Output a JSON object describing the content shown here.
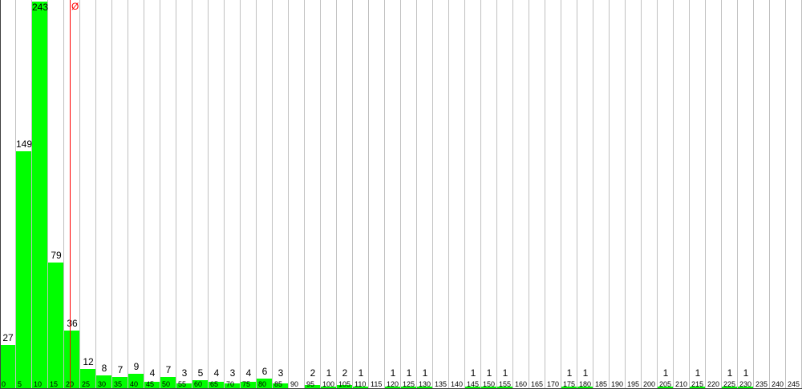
{
  "chart_data": {
    "type": "bar",
    "categories": [
      "0",
      "5",
      "10",
      "15",
      "20",
      "25",
      "30",
      "35",
      "40",
      "45",
      "50",
      "55",
      "60",
      "65",
      "70",
      "75",
      "80",
      "85",
      "90",
      "95",
      "100",
      "105",
      "110",
      "115",
      "120",
      "125",
      "130",
      "135",
      "140",
      "145",
      "150",
      "155",
      "160",
      "165",
      "170",
      "175",
      "180",
      "185",
      "190",
      "195",
      "200",
      "205",
      "210",
      "215",
      "220",
      "225",
      "230",
      "235",
      "240",
      "245"
    ],
    "values": [
      27,
      149,
      243,
      79,
      36,
      12,
      8,
      7,
      9,
      4,
      7,
      3,
      5,
      4,
      3,
      4,
      6,
      3,
      0,
      2,
      1,
      2,
      1,
      0,
      1,
      1,
      1,
      0,
      0,
      1,
      1,
      1,
      0,
      0,
      0,
      1,
      1,
      0,
      0,
      0,
      0,
      1,
      0,
      1,
      0,
      1,
      1,
      0,
      0,
      0
    ],
    "ylim": [
      0,
      243
    ],
    "grid": true,
    "mean_marker": {
      "label": "Ø",
      "value": 21.75,
      "color": "#ff0000"
    },
    "bar_color": "#00ff00"
  }
}
